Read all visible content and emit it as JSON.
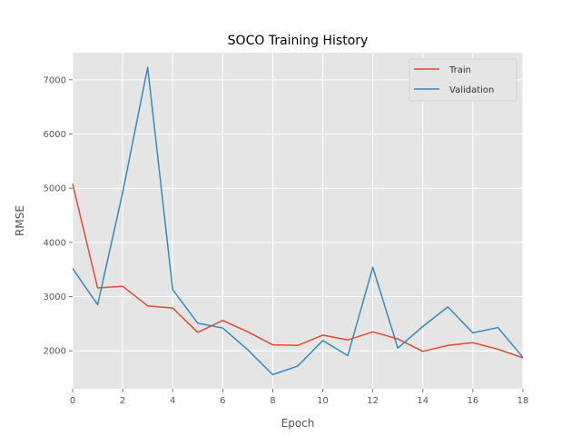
{
  "chart_data": {
    "type": "line",
    "title": "SOCO Training History",
    "xlabel": "Epoch",
    "ylabel": "RMSE",
    "xlim": [
      0,
      18
    ],
    "ylim": [
      1300,
      7500
    ],
    "xticks": [
      0,
      2,
      4,
      6,
      8,
      10,
      12,
      14,
      16,
      18
    ],
    "yticks": [
      2000,
      3000,
      4000,
      5000,
      6000,
      7000
    ],
    "grid": true,
    "legend_position": "top-right",
    "background_color": "#e5e5e5",
    "grid_color": "#ffffff",
    "x": [
      0,
      1,
      2,
      3,
      4,
      5,
      6,
      7,
      8,
      9,
      10,
      11,
      12,
      13,
      14,
      15,
      16,
      17,
      18
    ],
    "series": [
      {
        "name": "Train",
        "color": "#e24a33",
        "values": [
          5080,
          3160,
          3190,
          2830,
          2790,
          2340,
          2560,
          2350,
          2110,
          2100,
          2290,
          2200,
          2350,
          2220,
          1990,
          2100,
          2150,
          2030,
          1870
        ]
      },
      {
        "name": "Validation",
        "color": "#348abd",
        "values": [
          3520,
          2850,
          4920,
          7230,
          3130,
          2510,
          2420,
          2020,
          1560,
          1720,
          2190,
          1910,
          3540,
          2050,
          2450,
          2810,
          2330,
          2430,
          1880
        ]
      }
    ]
  }
}
